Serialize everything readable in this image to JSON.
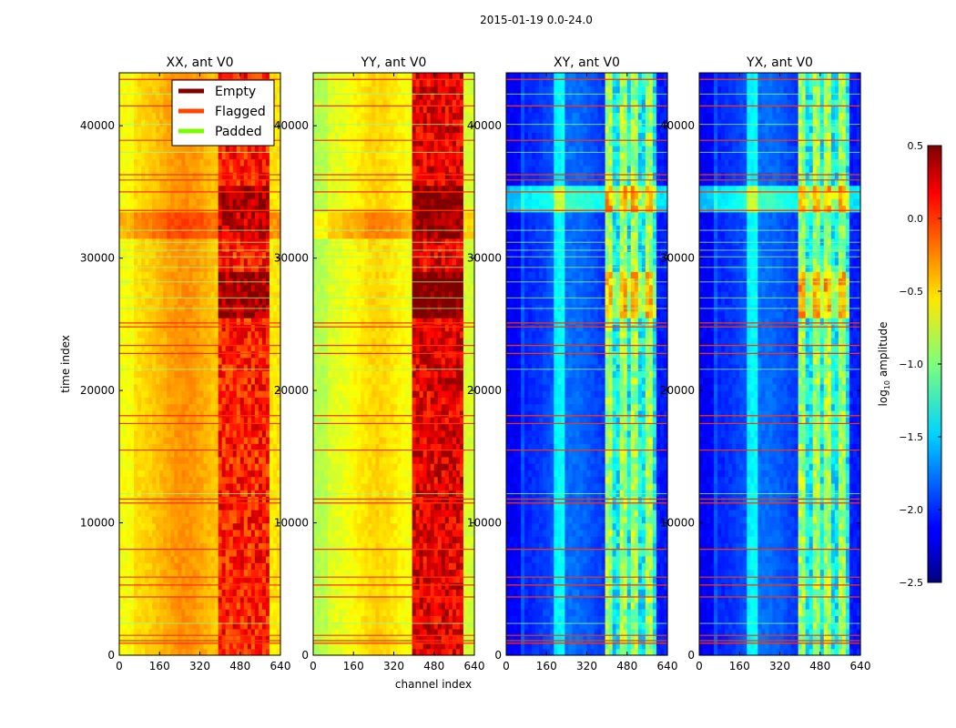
{
  "figure": {
    "suptitle": "2015-01-19 0.0-24.0",
    "xlabel": "channel index",
    "ylabel": "time index"
  },
  "chart_data": {
    "type": "heatmap",
    "title": "2015-01-19 0.0-24.0",
    "xlabel": "channel index",
    "ylabel": "time index",
    "xlim": [
      0,
      640
    ],
    "ylim": [
      0,
      44000
    ],
    "x_ticks": [
      0,
      160,
      320,
      480,
      640
    ],
    "x_tick_labels": [
      "0",
      "160",
      "320",
      "480",
      "640"
    ],
    "y_ticks": [
      0,
      10000,
      20000,
      30000,
      40000
    ],
    "y_tick_labels": [
      "0",
      "10000",
      "20000",
      "30000",
      "40000"
    ],
    "panels": [
      {
        "name": "XX",
        "title": "XX, ant V0",
        "base_level": -0.55,
        "rfi_level": -0.05
      },
      {
        "name": "YY",
        "title": "YY, ant V0",
        "base_level": -0.75,
        "rfi_level": 0.1
      },
      {
        "name": "XY",
        "title": "XY, ant V0",
        "base_level": -2.05,
        "rfi_level": -1.0
      },
      {
        "name": "YX",
        "title": "YX, ant V0",
        "base_level": -2.05,
        "rfi_level": -1.0
      }
    ],
    "legend": {
      "location": "top-right of first panel",
      "entries": [
        {
          "label": "Empty",
          "color": "#800000"
        },
        {
          "label": "Flagged",
          "color": "#ff4500"
        },
        {
          "label": "Padded",
          "color": "#7cfc00"
        }
      ]
    },
    "colorbar": {
      "label": "log10 amplitude",
      "range": [
        -2.5,
        0.5
      ],
      "ticks": [
        0.5,
        0.0,
        -0.5,
        -1.0,
        -1.5,
        -2.0,
        -2.5
      ],
      "tick_labels": [
        "0.5",
        "0.0",
        "−0.5",
        "−1.0",
        "−1.5",
        "−2.0",
        "−2.5"
      ],
      "colormap": "jet"
    },
    "flagged_time_rows": [
      900,
      1100,
      1500,
      4400,
      5300,
      5900,
      8000,
      11500,
      11800,
      15500,
      17500,
      18100,
      22800,
      23400,
      24800,
      25100,
      33600,
      35000,
      35900,
      36300,
      38900,
      41500,
      43500
    ],
    "padded_time_rows": [
      2400,
      12200,
      21600,
      26200,
      27000,
      28200,
      29300,
      30100,
      30600,
      31200,
      32100,
      38000,
      40100,
      42400
    ],
    "strong_rfi_time_bands": [
      [
        25500,
        29000
      ],
      [
        33500,
        35500
      ]
    ],
    "broad_bright_time_band": [
      31500,
      33500
    ],
    "rfi_channel_band": [
      400,
      600
    ]
  }
}
